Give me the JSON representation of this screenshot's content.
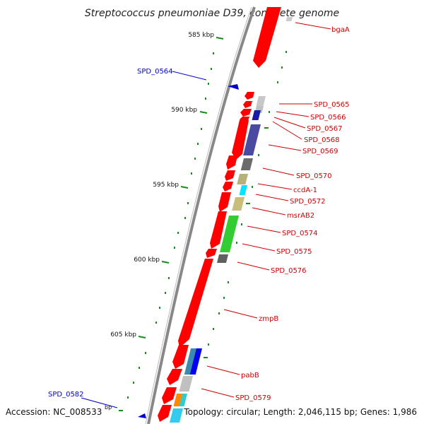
{
  "title": "Streptococcus pneumoniae D39, complete genome",
  "footer": {
    "accession": "Accession: NC_008533",
    "bp_unit": "bp",
    "topology": "Topology: circular; Length: 2,046,115 bp; Genes: 1,986"
  },
  "colors": {
    "forward_gene": "#ff0000",
    "forward_label": "#cc0000",
    "reverse_gene": "#0000cc",
    "axis": "#808080",
    "tick": "#1a8a1a"
  },
  "ticks": [
    {
      "label": "585 kbp"
    },
    {
      "label": "590 kbp"
    },
    {
      "label": "595 kbp"
    },
    {
      "label": "600 kbp"
    },
    {
      "label": "605 kbp"
    }
  ],
  "genes": [
    {
      "label": "bgaA",
      "strand": "forward"
    },
    {
      "label": "SPD_0564",
      "strand": "reverse"
    },
    {
      "label": "SPD_0565",
      "strand": "forward"
    },
    {
      "label": "SPD_0566",
      "strand": "forward"
    },
    {
      "label": "SPD_0567",
      "strand": "forward"
    },
    {
      "label": "SPD_0568",
      "strand": "forward"
    },
    {
      "label": "SPD_0569",
      "strand": "forward"
    },
    {
      "label": "SPD_0570",
      "strand": "forward"
    },
    {
      "label": "ccdA-1",
      "strand": "forward"
    },
    {
      "label": "SPD_0572",
      "strand": "forward"
    },
    {
      "label": "msrAB2",
      "strand": "forward"
    },
    {
      "label": "SPD_0574",
      "strand": "forward"
    },
    {
      "label": "SPD_0575",
      "strand": "forward"
    },
    {
      "label": "SPD_0576",
      "strand": "forward"
    },
    {
      "label": "zmpB",
      "strand": "forward"
    },
    {
      "label": "pabB",
      "strand": "forward"
    },
    {
      "label": "SPD_0579",
      "strand": "forward"
    },
    {
      "label": "SPD_0582",
      "strand": "reverse"
    }
  ]
}
